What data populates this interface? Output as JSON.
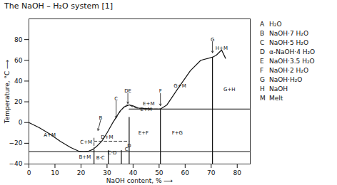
{
  "chart_data": {
    "type": "line",
    "title": "The NaOH – H₂O system [1]",
    "xlabel": "NaOH content, % ⟶",
    "ylabel": "Temperature, °C ⟶",
    "xlim": [
      0,
      85
    ],
    "ylim": [
      -40,
      100
    ],
    "xticks": [
      0,
      10,
      20,
      30,
      40,
      50,
      60,
      70,
      80
    ],
    "yticks": [
      -40,
      -20,
      0,
      20,
      40,
      60,
      80
    ],
    "series": [
      {
        "x": [
          0,
          4,
          8,
          12,
          16,
          19,
          21,
          23,
          24.5,
          26,
          28,
          30,
          32,
          33.5,
          35,
          36.5,
          38.5,
          40,
          42,
          45,
          48,
          50.5,
          53,
          57,
          62,
          66,
          70.5,
          72,
          74,
          75.5
        ],
        "values": [
          0,
          -5,
          -11,
          -18,
          -24,
          -27.5,
          -28,
          -27.5,
          -26,
          -23,
          -18,
          -10,
          -1,
          5,
          11,
          15,
          17,
          16,
          14,
          13.5,
          13,
          13,
          17,
          32,
          50,
          60,
          63,
          65,
          70,
          62
        ],
        "color": "#111111",
        "line_style": "solid"
      },
      {
        "x": [
          33.5,
          35.5,
          37.5,
          38.5,
          40,
          42,
          45,
          47,
          50.5
        ],
        "values": [
          5,
          12,
          17,
          17,
          15,
          13.5,
          13,
          13,
          13
        ],
        "color": "#333333",
        "line_style": "dashed"
      },
      {
        "x": [
          25.0,
          25.0
        ],
        "values": [
          -40,
          -27
        ],
        "color": "#111111",
        "line_style": "solid"
      },
      {
        "x": [
          30.5,
          30.5
        ],
        "values": [
          -40,
          -27
        ],
        "color": "#111111",
        "line_style": "solid"
      },
      {
        "x": [
          35.5,
          35.5
        ],
        "values": [
          -40,
          -27
        ],
        "color": "#111111",
        "line_style": "solid"
      },
      {
        "x": [
          38.5,
          38.5
        ],
        "values": [
          -40,
          5
        ],
        "color": "#111111",
        "line_style": "solid"
      },
      {
        "x": [
          50.5,
          50.5
        ],
        "values": [
          -40,
          13
        ],
        "color": "#111111",
        "line_style": "solid"
      },
      {
        "x": [
          70.5,
          70.5
        ],
        "values": [
          -40,
          63
        ],
        "color": "#111111",
        "line_style": "solid"
      },
      {
        "x": [
          0,
          85
        ],
        "values": [
          -28,
          -28
        ],
        "color": "#111111",
        "line_style": "solid"
      },
      {
        "x": [
          38.5,
          85
        ],
        "values": [
          13,
          13
        ],
        "color": "#111111",
        "line_style": "solid"
      },
      {
        "x": [
          25.0,
          25.0
        ],
        "values": [
          -27,
          -15
        ],
        "color": "#333333",
        "line_style": "dashed"
      },
      {
        "x": [
          25.0,
          38.5
        ],
        "values": [
          -18,
          -18
        ],
        "color": "#333333",
        "line_style": "dashed"
      }
    ],
    "region_labels": [
      {
        "text": "A+M",
        "x": 8,
        "y": -12
      },
      {
        "text": "B+M",
        "x": 21.5,
        "y": -33
      },
      {
        "text": "C+M",
        "x": 22,
        "y": -19
      },
      {
        "text": "D+M",
        "x": 30,
        "y": -14
      },
      {
        "text": "E+M",
        "x": 45,
        "y": 13
      },
      {
        "text": "G+M",
        "x": 58,
        "y": 35
      },
      {
        "text": "H+M",
        "x": 74,
        "y": 72
      },
      {
        "text": "G+H",
        "x": 77,
        "y": 32
      },
      {
        "text": "E+F",
        "x": 44,
        "y": -10
      },
      {
        "text": "F+G",
        "x": 57,
        "y": -10
      },
      {
        "text": "B·C",
        "x": 27.5,
        "y": -34
      },
      {
        "text": "C·D",
        "x": 32,
        "y": -29
      },
      {
        "text": "D",
        "x": 38.5,
        "y": -22
      },
      {
        "text": "C",
        "x": 37.5,
        "y": -26
      }
    ],
    "inline_labels": [
      {
        "text": "E+M",
        "x": 46,
        "y": 16
      }
    ],
    "annotations": [
      {
        "text": "C",
        "text_x": 33.5,
        "text_y": 21,
        "x": 33.5,
        "y": 4
      },
      {
        "text": "DE",
        "text_x": 38.0,
        "text_y": 28,
        "x": 38.0,
        "y": 18
      },
      {
        "text": "F",
        "text_x": 50.5,
        "text_y": 28,
        "x": 50.5,
        "y": 16
      },
      {
        "text": "G",
        "text_x": 70.5,
        "text_y": 78,
        "x": 70.5,
        "y": 67
      },
      {
        "text": "B",
        "text_x": 27.5,
        "text_y": 2,
        "x": 26.5,
        "y": -8
      }
    ],
    "phases": [
      {
        "symbol": "A",
        "name": "H₂O"
      },
      {
        "symbol": "B",
        "name": "NaOH·7 H₂O"
      },
      {
        "symbol": "C",
        "name": "NaOH·5 H₂O"
      },
      {
        "symbol": "D",
        "name": "α-NaOH·4 H₂O"
      },
      {
        "symbol": "E",
        "name": "NaOH·3.5 H₂O"
      },
      {
        "symbol": "F",
        "name": "NaOH·2 H₂O"
      },
      {
        "symbol": "G",
        "name": "NaOH·H₂O"
      },
      {
        "symbol": "H",
        "name": "NaOH"
      },
      {
        "symbol": "M",
        "name": "Melt"
      }
    ]
  }
}
